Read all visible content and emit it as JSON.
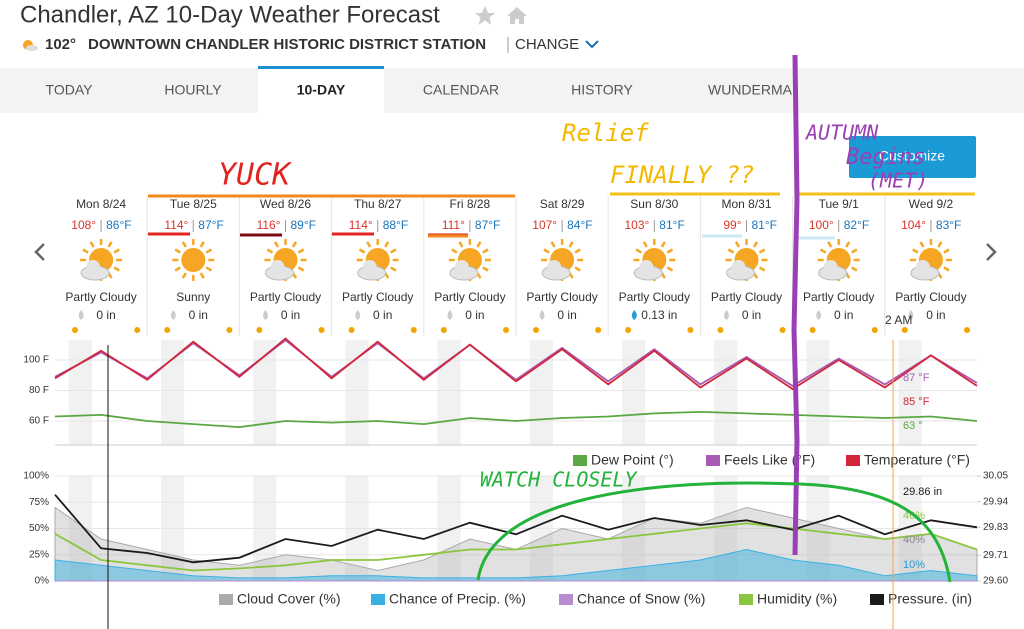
{
  "header": {
    "title": "Chandler, AZ 10-Day Weather Forecast",
    "current_temp": "102°",
    "station": "DOWNTOWN CHANDLER HISTORIC DISTRICT STATION",
    "change": "CHANGE"
  },
  "tabs": [
    "TODAY",
    "HOURLY",
    "10-DAY",
    "CALENDAR",
    "HISTORY",
    "WUNDERMA"
  ],
  "active_tab": 2,
  "customize": "Customize",
  "days": [
    {
      "date": "Mon 8/24",
      "hi": "108°",
      "lo": "86°F",
      "condition": "Partly Cloudy",
      "precip": "0 in"
    },
    {
      "date": "Tue 8/25",
      "hi": "114°",
      "lo": "87°F",
      "condition": "Sunny",
      "precip": "0 in"
    },
    {
      "date": "Wed 8/26",
      "hi": "116°",
      "lo": "89°F",
      "condition": "Partly Cloudy",
      "precip": "0 in"
    },
    {
      "date": "Thu 8/27",
      "hi": "114°",
      "lo": "88°F",
      "condition": "Partly Cloudy",
      "precip": "0 in"
    },
    {
      "date": "Fri 8/28",
      "hi": "111°",
      "lo": "87°F",
      "condition": "Partly Cloudy",
      "precip": "0 in"
    },
    {
      "date": "Sat 8/29",
      "hi": "107°",
      "lo": "84°F",
      "condition": "Partly Cloudy",
      "precip": "0 in"
    },
    {
      "date": "Sun 8/30",
      "hi": "103°",
      "lo": "81°F",
      "condition": "Partly Cloudy",
      "precip": "0.13 in"
    },
    {
      "date": "Mon 8/31",
      "hi": "99°",
      "lo": "81°F",
      "condition": "Partly Cloudy",
      "precip": "0 in"
    },
    {
      "date": "Tue 9/1",
      "hi": "100°",
      "lo": "82°F",
      "condition": "Partly Cloudy",
      "precip": "0 in"
    },
    {
      "date": "Wed 9/2",
      "hi": "104°",
      "lo": "83°F",
      "condition": "Partly Cloudy",
      "precip": "0 in"
    }
  ],
  "current_time": "2 AM",
  "charts": {
    "temperature": {
      "type": "line",
      "ylim": [
        44.3,
        113.1
      ],
      "yticks": [
        {
          "value": 100,
          "label": "100 F"
        },
        {
          "value": 80,
          "label": "80 F"
        },
        {
          "value": 60,
          "label": "60 F"
        }
      ],
      "series": [
        {
          "name": "Dew Point (°)",
          "color": "#5aa843",
          "values": [
            63,
            64,
            60,
            58,
            56,
            60,
            59,
            60,
            58,
            62,
            60,
            62,
            63,
            65,
            66,
            65,
            64,
            63,
            62,
            63,
            60
          ]
        },
        {
          "name": "Feels Like (°F)",
          "color": "#a75bb5",
          "values": [
            89,
            105,
            88,
            111,
            90,
            113,
            89,
            111,
            88,
            110,
            87,
            108,
            86,
            107,
            84,
            102,
            83,
            101,
            84,
            103,
            85
          ]
        },
        {
          "name": "Temperature (°F)",
          "color": "#d3263a",
          "values": [
            88,
            106,
            87,
            112,
            89,
            114,
            88,
            112,
            87,
            110,
            86,
            107,
            84,
            106,
            82,
            101,
            81,
            100,
            82,
            103,
            83
          ]
        }
      ],
      "readouts": [
        "87 °F",
        "85 °F",
        "63 °"
      ]
    },
    "conditions": {
      "type": "area",
      "ylim": [
        0,
        100
      ],
      "y2lim": [
        29.6,
        30.05
      ],
      "yticks": [
        {
          "value": 100,
          "label": "100%"
        },
        {
          "value": 75,
          "label": "75%"
        },
        {
          "value": 50,
          "label": "50%"
        },
        {
          "value": 25,
          "label": "25%"
        },
        {
          "value": 0,
          "label": "0%"
        }
      ],
      "y2ticks": [
        30.05,
        29.94,
        29.83,
        29.71,
        {
          "value": 29.6,
          "label": "29.60"
        }
      ],
      "series": [
        {
          "name": "Cloud Cover (%)",
          "color": "#aaaaaa",
          "values": [
            70,
            40,
            30,
            20,
            15,
            25,
            20,
            10,
            20,
            40,
            30,
            50,
            40,
            60,
            55,
            70,
            60,
            50,
            40,
            45,
            30
          ]
        },
        {
          "name": "Chance of Precip. (%)",
          "color": "#3ab0e2",
          "values": [
            20,
            15,
            10,
            5,
            3,
            3,
            5,
            5,
            3,
            3,
            3,
            5,
            10,
            15,
            20,
            30,
            20,
            15,
            5,
            10,
            5
          ]
        },
        {
          "name": "Chance of Snow (%)",
          "color": "#b98bd0",
          "values": [
            0,
            0,
            0,
            0,
            0,
            0,
            0,
            0,
            0,
            0,
            0,
            0,
            0,
            0,
            0,
            0,
            0,
            0,
            0,
            0,
            0
          ]
        },
        {
          "name": "Humidity (%)",
          "color": "#8cc63f",
          "values": [
            45,
            20,
            15,
            10,
            12,
            15,
            20,
            20,
            25,
            30,
            30,
            35,
            40,
            45,
            50,
            55,
            50,
            45,
            40,
            45,
            30
          ]
        },
        {
          "name": "Pressure. (in)",
          "color": "#1a1a1a",
          "axis": "y2",
          "values": [
            29.97,
            29.74,
            29.72,
            29.68,
            29.7,
            29.78,
            29.75,
            29.82,
            29.78,
            29.85,
            29.8,
            29.88,
            29.82,
            29.87,
            29.84,
            29.86,
            29.82,
            29.88,
            29.8,
            29.86,
            29.83
          ]
        }
      ],
      "readouts": [
        "29.86 in",
        "46%",
        "40%",
        "10%"
      ]
    }
  },
  "annotations": {
    "yuck": "YUCK",
    "relief": "Relief",
    "finally": "FINALLY ??",
    "autumn": "AUTUMN",
    "begins": "Begins",
    "met": "(MET)",
    "watch": "WATCH CLOSELY"
  }
}
